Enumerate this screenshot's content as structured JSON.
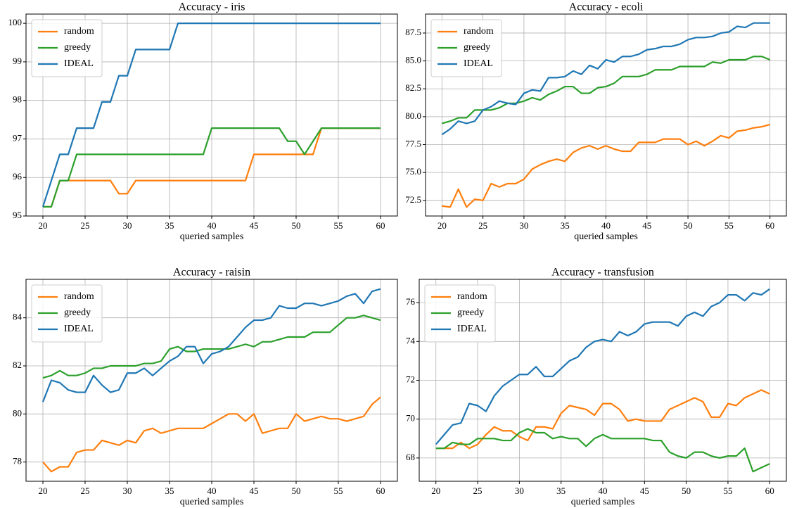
{
  "chart_data": [
    {
      "type": "line",
      "title": "Accuracy - iris",
      "xlabel": "queried samples",
      "grid": true,
      "legend": "upper left",
      "x": [
        20,
        21,
        22,
        23,
        24,
        25,
        26,
        27,
        28,
        29,
        30,
        31,
        32,
        33,
        34,
        35,
        36,
        37,
        38,
        39,
        40,
        41,
        42,
        43,
        44,
        45,
        46,
        47,
        48,
        49,
        50,
        51,
        52,
        53,
        54,
        55,
        56,
        57,
        58,
        59,
        60
      ],
      "xlim": [
        18,
        62
      ],
      "ylim": [
        95.0,
        100.24
      ],
      "xticks": [
        20,
        25,
        30,
        35,
        40,
        45,
        50,
        55,
        60
      ],
      "yticks": [
        95,
        96,
        97,
        98,
        99,
        100
      ],
      "series": [
        {
          "name": "random",
          "color": "#ff7f0e",
          "values": [
            95.24,
            95.24,
            95.92,
            95.92,
            95.92,
            95.92,
            95.92,
            95.92,
            95.92,
            95.58,
            95.58,
            95.92,
            95.92,
            95.92,
            95.92,
            95.92,
            95.92,
            95.92,
            95.92,
            95.92,
            95.92,
            95.92,
            95.92,
            95.92,
            95.92,
            96.6,
            96.6,
            96.6,
            96.6,
            96.6,
            96.6,
            96.6,
            96.6,
            97.28,
            97.28,
            97.28,
            97.28,
            97.28,
            97.28,
            97.28,
            97.28
          ]
        },
        {
          "name": "greedy",
          "color": "#2ca02c",
          "values": [
            95.24,
            95.24,
            95.92,
            95.92,
            96.6,
            96.6,
            96.6,
            96.6,
            96.6,
            96.6,
            96.6,
            96.6,
            96.6,
            96.6,
            96.6,
            96.6,
            96.6,
            96.6,
            96.6,
            96.6,
            97.28,
            97.28,
            97.28,
            97.28,
            97.28,
            97.28,
            97.28,
            97.28,
            97.28,
            96.94,
            96.94,
            96.6,
            96.94,
            97.28,
            97.28,
            97.28,
            97.28,
            97.28,
            97.28,
            97.28,
            97.28
          ]
        },
        {
          "name": "IDEAL",
          "color": "#1f77b4",
          "values": [
            95.24,
            95.92,
            96.6,
            96.6,
            97.28,
            97.28,
            97.28,
            97.96,
            97.96,
            98.64,
            98.64,
            99.32,
            99.32,
            99.32,
            99.32,
            99.32,
            100,
            100,
            100,
            100,
            100,
            100,
            100,
            100,
            100,
            100,
            100,
            100,
            100,
            100,
            100,
            100,
            100,
            100,
            100,
            100,
            100,
            100,
            100,
            100,
            100
          ]
        }
      ]
    },
    {
      "type": "line",
      "title": "Accuracy - ecoli",
      "xlabel": "queried samples",
      "grid": true,
      "legend": "upper left",
      "x": [
        20,
        21,
        22,
        23,
        24,
        25,
        26,
        27,
        28,
        29,
        30,
        31,
        32,
        33,
        34,
        35,
        36,
        37,
        38,
        39,
        40,
        41,
        42,
        43,
        44,
        45,
        46,
        47,
        48,
        49,
        50,
        51,
        52,
        53,
        54,
        55,
        56,
        57,
        58,
        59,
        60
      ],
      "xlim": [
        18,
        62
      ],
      "ylim": [
        71.1,
        89.2
      ],
      "xticks": [
        20,
        25,
        30,
        35,
        40,
        45,
        50,
        55,
        60
      ],
      "yticks": [
        72.5,
        {
          "value": 75,
          "label": "75.0"
        },
        77.5,
        {
          "value": 80,
          "label": "80.0"
        },
        82.5,
        {
          "value": 85,
          "label": "85.0"
        },
        87.5
      ],
      "series": [
        {
          "name": "random",
          "color": "#ff7f0e",
          "values": [
            72.0,
            71.9,
            73.5,
            71.9,
            72.6,
            72.5,
            74.0,
            73.7,
            74.0,
            74.0,
            74.4,
            75.3,
            75.7,
            76.0,
            76.2,
            76.0,
            76.8,
            77.2,
            77.4,
            77.1,
            77.4,
            77.1,
            76.9,
            76.9,
            77.7,
            77.7,
            77.7,
            78.0,
            78.0,
            78.0,
            77.5,
            77.8,
            77.4,
            77.8,
            78.3,
            78.1,
            78.7,
            78.8,
            79.0,
            79.1,
            79.3
          ]
        },
        {
          "name": "greedy",
          "color": "#2ca02c",
          "values": [
            79.4,
            79.6,
            79.9,
            79.9,
            80.6,
            80.6,
            80.6,
            80.8,
            81.2,
            81.2,
            81.4,
            81.7,
            81.5,
            82.0,
            82.3,
            82.7,
            82.7,
            82.1,
            82.1,
            82.6,
            82.7,
            83.0,
            83.6,
            83.6,
            83.6,
            83.8,
            84.2,
            84.2,
            84.2,
            84.5,
            84.5,
            84.5,
            84.5,
            84.9,
            84.8,
            85.1,
            85.1,
            85.1,
            85.4,
            85.4,
            85.1
          ]
        },
        {
          "name": "IDEAL",
          "color": "#1f77b4",
          "values": [
            78.4,
            78.9,
            79.6,
            79.4,
            79.6,
            80.6,
            80.9,
            81.4,
            81.2,
            81.1,
            82.1,
            82.4,
            82.3,
            83.5,
            83.5,
            83.6,
            84.1,
            83.8,
            84.6,
            84.3,
            85.1,
            84.9,
            85.4,
            85.4,
            85.6,
            86.0,
            86.1,
            86.3,
            86.3,
            86.5,
            86.9,
            87.1,
            87.1,
            87.2,
            87.5,
            87.6,
            88.1,
            88.0,
            88.4,
            88.4,
            88.4
          ]
        }
      ]
    },
    {
      "type": "line",
      "title": "Accuracy - raisin",
      "xlabel": "queried samples",
      "grid": true,
      "legend": "upper left",
      "x": [
        20,
        21,
        22,
        23,
        24,
        25,
        26,
        27,
        28,
        29,
        30,
        31,
        32,
        33,
        34,
        35,
        36,
        37,
        38,
        39,
        40,
        41,
        42,
        43,
        44,
        45,
        46,
        47,
        48,
        49,
        50,
        51,
        52,
        53,
        54,
        55,
        56,
        57,
        58,
        59,
        60
      ],
      "xlim": [
        18,
        62
      ],
      "ylim": [
        77.2,
        85.6
      ],
      "xticks": [
        20,
        25,
        30,
        35,
        40,
        45,
        50,
        55,
        60
      ],
      "yticks": [
        78,
        80,
        82,
        84
      ],
      "series": [
        {
          "name": "random",
          "color": "#ff7f0e",
          "values": [
            78.0,
            77.6,
            77.8,
            77.8,
            78.4,
            78.5,
            78.5,
            78.9,
            78.8,
            78.7,
            78.9,
            78.8,
            79.3,
            79.4,
            79.2,
            79.3,
            79.4,
            79.4,
            79.4,
            79.4,
            79.6,
            79.8,
            80.0,
            80.0,
            79.7,
            80.0,
            79.2,
            79.3,
            79.4,
            79.4,
            80.0,
            79.7,
            79.8,
            79.9,
            79.8,
            79.8,
            79.7,
            79.8,
            79.9,
            80.4,
            80.7
          ]
        },
        {
          "name": "greedy",
          "color": "#2ca02c",
          "values": [
            81.5,
            81.6,
            81.8,
            81.6,
            81.6,
            81.7,
            81.9,
            81.9,
            82.0,
            82.0,
            82.0,
            82.0,
            82.1,
            82.1,
            82.2,
            82.7,
            82.8,
            82.6,
            82.6,
            82.7,
            82.7,
            82.7,
            82.7,
            82.8,
            82.9,
            82.8,
            83.0,
            83.0,
            83.1,
            83.2,
            83.2,
            83.2,
            83.4,
            83.4,
            83.4,
            83.7,
            84.0,
            84.0,
            84.1,
            84.0,
            83.9
          ]
        },
        {
          "name": "IDEAL",
          "color": "#1f77b4",
          "values": [
            80.5,
            81.4,
            81.3,
            81.0,
            80.9,
            80.9,
            81.6,
            81.2,
            80.9,
            81.0,
            81.7,
            81.7,
            81.9,
            81.6,
            81.9,
            82.2,
            82.4,
            82.8,
            82.8,
            82.1,
            82.5,
            82.6,
            82.8,
            83.2,
            83.6,
            83.9,
            83.9,
            84.0,
            84.5,
            84.4,
            84.4,
            84.6,
            84.6,
            84.5,
            84.6,
            84.7,
            84.9,
            85.0,
            84.6,
            85.1,
            85.2
          ]
        }
      ]
    },
    {
      "type": "line",
      "title": "Accuracy - transfusion",
      "xlabel": "queried samples",
      "grid": true,
      "legend": "upper left",
      "x": [
        20,
        21,
        22,
        23,
        24,
        25,
        26,
        27,
        28,
        29,
        30,
        31,
        32,
        33,
        34,
        35,
        36,
        37,
        38,
        39,
        40,
        41,
        42,
        43,
        44,
        45,
        46,
        47,
        48,
        49,
        50,
        51,
        52,
        53,
        54,
        55,
        56,
        57,
        58,
        59,
        60
      ],
      "xlim": [
        18,
        62
      ],
      "ylim": [
        66.8,
        77.2
      ],
      "xticks": [
        20,
        25,
        30,
        35,
        40,
        45,
        50,
        55,
        60
      ],
      "yticks": [
        68,
        70,
        72,
        74,
        76
      ],
      "series": [
        {
          "name": "random",
          "color": "#ff7f0e",
          "values": [
            68.5,
            68.5,
            68.5,
            68.8,
            68.5,
            68.7,
            69.2,
            69.6,
            69.4,
            69.4,
            69.1,
            68.9,
            69.6,
            69.6,
            69.5,
            70.3,
            70.7,
            70.6,
            70.5,
            70.2,
            70.8,
            70.8,
            70.5,
            69.9,
            70.0,
            69.9,
            69.9,
            69.9,
            70.5,
            70.7,
            70.9,
            71.1,
            70.9,
            70.1,
            70.1,
            70.8,
            70.7,
            71.1,
            71.3,
            71.5,
            71.3
          ]
        },
        {
          "name": "greedy",
          "color": "#2ca02c",
          "values": [
            68.5,
            68.5,
            68.8,
            68.7,
            68.7,
            69.0,
            69.0,
            69.0,
            68.9,
            68.9,
            69.3,
            69.5,
            69.3,
            69.3,
            69.0,
            69.1,
            69.0,
            69.0,
            68.6,
            69.0,
            69.2,
            69.0,
            69.0,
            69.0,
            69.0,
            69.0,
            68.9,
            68.9,
            68.3,
            68.1,
            68.0,
            68.3,
            68.3,
            68.1,
            68.0,
            68.1,
            68.1,
            68.5,
            67.3,
            67.5,
            67.7
          ]
        },
        {
          "name": "IDEAL",
          "color": "#1f77b4",
          "values": [
            68.7,
            69.2,
            69.7,
            69.8,
            70.8,
            70.7,
            70.4,
            71.2,
            71.7,
            72.0,
            72.3,
            72.3,
            72.7,
            72.2,
            72.2,
            72.6,
            73.0,
            73.2,
            73.7,
            74.0,
            74.1,
            74.0,
            74.5,
            74.3,
            74.5,
            74.9,
            75.0,
            75.0,
            75.0,
            74.8,
            75.3,
            75.5,
            75.3,
            75.8,
            76.0,
            76.4,
            76.4,
            76.1,
            76.5,
            76.4,
            76.7
          ]
        }
      ]
    }
  ]
}
